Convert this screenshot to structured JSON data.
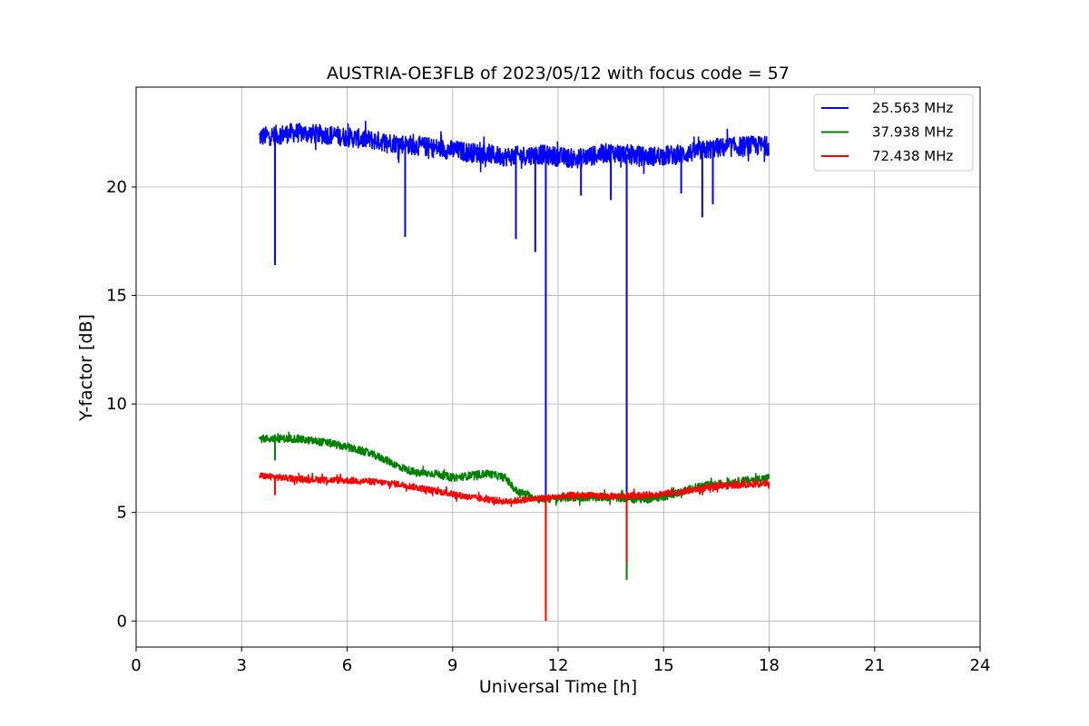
{
  "chart_data": {
    "type": "line",
    "title": "AUSTRIA-OE3FLB of 2023/05/12 with focus code = 57",
    "xlabel": "Universal Time [h]",
    "ylabel": "Y-factor [dB]",
    "xlim": [
      0,
      24
    ],
    "ylim": [
      -1.2,
      24.6
    ],
    "xticks": [
      0,
      3,
      6,
      9,
      12,
      15,
      18,
      21,
      24
    ],
    "yticks": [
      0,
      5,
      10,
      15,
      20
    ],
    "grid": true,
    "legend_position": "top-right",
    "series": [
      {
        "name": "25.563 MHz",
        "color": "#0000ff",
        "noise_amplitude": 0.45,
        "points": [
          [
            3.5,
            22.3
          ],
          [
            4.5,
            22.5
          ],
          [
            5.5,
            22.4
          ],
          [
            6.5,
            22.2
          ],
          [
            7.5,
            22.0
          ],
          [
            8.5,
            21.8
          ],
          [
            9.5,
            21.6
          ],
          [
            10.5,
            21.4
          ],
          [
            11.5,
            21.5
          ],
          [
            12.5,
            21.3
          ],
          [
            13.5,
            21.6
          ],
          [
            14.5,
            21.4
          ],
          [
            15.5,
            21.5
          ],
          [
            16.5,
            21.8
          ],
          [
            17.5,
            21.9
          ],
          [
            18.0,
            21.9
          ]
        ],
        "dips": [
          [
            3.95,
            16.4
          ],
          [
            7.65,
            17.7
          ],
          [
            10.8,
            17.6
          ],
          [
            11.35,
            17.0
          ],
          [
            11.65,
            5.7
          ],
          [
            12.65,
            19.6
          ],
          [
            13.5,
            19.4
          ],
          [
            13.95,
            5.7
          ],
          [
            15.5,
            19.7
          ],
          [
            16.1,
            18.6
          ],
          [
            16.4,
            19.2
          ]
        ]
      },
      {
        "name": "37.938 MHz",
        "color": "#008000",
        "noise_amplitude": 0.18,
        "points": [
          [
            3.5,
            8.4
          ],
          [
            4.5,
            8.4
          ],
          [
            5.0,
            8.3
          ],
          [
            5.5,
            8.2
          ],
          [
            6.0,
            8.0
          ],
          [
            6.5,
            7.8
          ],
          [
            7.0,
            7.5
          ],
          [
            7.5,
            7.1
          ],
          [
            8.0,
            6.8
          ],
          [
            8.5,
            6.8
          ],
          [
            9.0,
            6.6
          ],
          [
            9.5,
            6.7
          ],
          [
            10.0,
            6.8
          ],
          [
            10.5,
            6.6
          ],
          [
            10.8,
            6.0
          ],
          [
            11.5,
            5.6
          ],
          [
            12.5,
            5.7
          ],
          [
            13.5,
            5.7
          ],
          [
            14.5,
            5.6
          ],
          [
            15.2,
            5.8
          ],
          [
            16.0,
            6.2
          ],
          [
            17.0,
            6.4
          ],
          [
            18.0,
            6.6
          ]
        ],
        "dips": [
          [
            3.95,
            7.4
          ],
          [
            11.65,
            0.5
          ],
          [
            13.95,
            1.9
          ]
        ]
      },
      {
        "name": "72.438 MHz",
        "color": "#ff0000",
        "noise_amplitude": 0.15,
        "points": [
          [
            3.5,
            6.7
          ],
          [
            4.5,
            6.55
          ],
          [
            5.5,
            6.5
          ],
          [
            6.5,
            6.45
          ],
          [
            7.5,
            6.3
          ],
          [
            8.5,
            6.0
          ],
          [
            9.5,
            5.7
          ],
          [
            10.5,
            5.5
          ],
          [
            11.5,
            5.65
          ],
          [
            12.5,
            5.8
          ],
          [
            13.5,
            5.75
          ],
          [
            14.5,
            5.8
          ],
          [
            15.5,
            5.95
          ],
          [
            16.5,
            6.2
          ],
          [
            17.5,
            6.3
          ],
          [
            18.0,
            6.35
          ]
        ],
        "dips": [
          [
            3.95,
            5.8
          ],
          [
            11.65,
            0.0
          ],
          [
            13.95,
            2.7
          ]
        ]
      }
    ]
  }
}
